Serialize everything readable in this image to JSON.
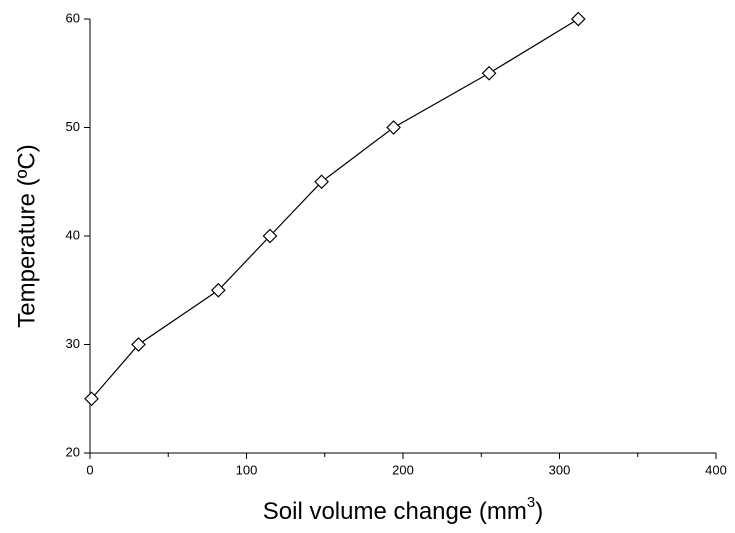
{
  "chart_data": {
    "type": "line",
    "xlabel": {
      "text": "Soil volume change (mm",
      "sup": "3",
      "end": ")"
    },
    "ylabel": "Temperature (ºC)",
    "x": [
      1,
      31,
      82,
      115,
      148,
      194,
      255,
      312
    ],
    "series": [
      {
        "color": "#000000",
        "marker": "diamond",
        "values": [
          25,
          30,
          35,
          40,
          45,
          50,
          55,
          60
        ]
      }
    ],
    "xlim": [
      0,
      400
    ],
    "xticks": [
      0,
      100,
      200,
      300,
      400
    ],
    "xminorticks": [
      50,
      150,
      250,
      350
    ],
    "ylim": [
      20,
      60
    ],
    "yticks": [
      20,
      30,
      40,
      50,
      60
    ],
    "grid": false
  }
}
